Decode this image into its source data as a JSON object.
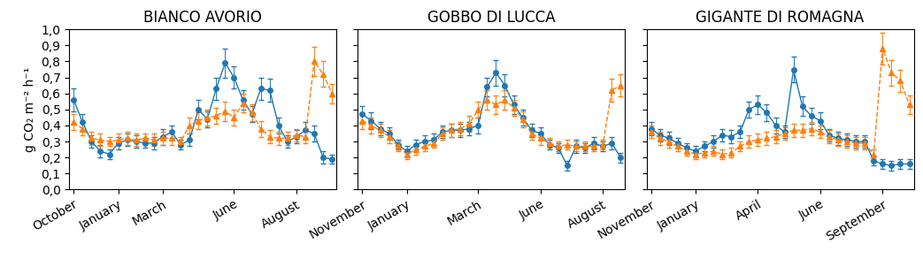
{
  "chart_data": [
    {
      "type": "line",
      "title": "BIANCO AVORIO",
      "ylabel": "g CO₂ m⁻² h⁻¹",
      "x": [
        0,
        1,
        2,
        3,
        4,
        5,
        6,
        7,
        8,
        9,
        10,
        11,
        12,
        13,
        14,
        15,
        16,
        17,
        18,
        19,
        20,
        21,
        22,
        23,
        24,
        25,
        26,
        27,
        28,
        29
      ],
      "series": [
        {
          "values": [
            0.56,
            0.42,
            0.3,
            0.24,
            0.22,
            0.29,
            0.31,
            0.3,
            0.29,
            0.29,
            0.33,
            0.36,
            0.28,
            0.31,
            0.5,
            0.44,
            0.63,
            0.79,
            0.7,
            0.56,
            0.47,
            0.63,
            0.62,
            0.4,
            0.3,
            0.33,
            0.37,
            0.35,
            0.2,
            0.19
          ],
          "errors": [
            0.07,
            0.05,
            0.04,
            0.04,
            0.03,
            0.04,
            0.04,
            0.04,
            0.03,
            0.04,
            0.05,
            0.04,
            0.03,
            0.04,
            0.06,
            0.05,
            0.07,
            0.09,
            0.07,
            0.06,
            0.05,
            0.07,
            0.07,
            0.05,
            0.04,
            0.04,
            0.05,
            0.05,
            0.04,
            0.03
          ],
          "marker": "circle",
          "line_style": "solid"
        },
        {
          "values": [
            0.42,
            0.38,
            0.32,
            0.31,
            0.3,
            0.31,
            0.32,
            0.31,
            0.32,
            0.31,
            0.32,
            0.32,
            0.3,
            0.4,
            0.43,
            0.45,
            0.46,
            0.49,
            0.45,
            0.54,
            0.48,
            0.38,
            0.33,
            0.32,
            0.32,
            0.34,
            0.33,
            0.8,
            0.72,
            0.6
          ],
          "errors": [
            0.05,
            0.04,
            0.04,
            0.04,
            0.03,
            0.04,
            0.04,
            0.04,
            0.03,
            0.04,
            0.04,
            0.04,
            0.03,
            0.05,
            0.05,
            0.05,
            0.05,
            0.06,
            0.05,
            0.06,
            0.05,
            0.05,
            0.04,
            0.04,
            0.04,
            0.04,
            0.04,
            0.09,
            0.08,
            0.06
          ],
          "marker": "triangle",
          "line_style": "dashed"
        }
      ],
      "xlim": [
        -0.5,
        29.5
      ],
      "xticks": [
        {
          "value": 0,
          "label": "October"
        },
        {
          "value": 5,
          "label": "January"
        },
        {
          "value": 10,
          "label": "March"
        },
        {
          "value": 18,
          "label": "June"
        },
        {
          "value": 25,
          "label": "August"
        }
      ],
      "ylim": [
        0.0,
        1.0
      ],
      "yticks": [
        {
          "value": 0.0,
          "label": "0,0"
        },
        {
          "value": 0.1,
          "label": "0,1"
        },
        {
          "value": 0.2,
          "label": "0,2"
        },
        {
          "value": 0.3,
          "label": "0,3"
        },
        {
          "value": 0.4,
          "label": "0,4"
        },
        {
          "value": 0.5,
          "label": "0,5"
        },
        {
          "value": 0.6,
          "label": "0,6"
        },
        {
          "value": 0.7,
          "label": "0,7"
        },
        {
          "value": 0.8,
          "label": "0,8"
        },
        {
          "value": 0.9,
          "label": "0,9"
        },
        {
          "value": 1.0,
          "label": "1,0"
        }
      ]
    },
    {
      "type": "line",
      "title": "GOBBO DI LUCCA",
      "x": [
        0,
        1,
        2,
        3,
        4,
        5,
        6,
        7,
        8,
        9,
        10,
        11,
        12,
        13,
        14,
        15,
        16,
        17,
        18,
        19,
        20,
        21,
        22,
        23,
        24,
        25,
        26,
        27,
        28,
        29
      ],
      "series": [
        {
          "values": [
            0.47,
            0.43,
            0.38,
            0.35,
            0.28,
            0.24,
            0.28,
            0.3,
            0.31,
            0.36,
            0.37,
            0.37,
            0.38,
            0.4,
            0.64,
            0.73,
            0.65,
            0.53,
            0.45,
            0.37,
            0.35,
            0.28,
            0.26,
            0.15,
            0.27,
            0.26,
            0.29,
            0.27,
            0.29,
            0.2
          ],
          "errors": [
            0.05,
            0.05,
            0.04,
            0.04,
            0.03,
            0.03,
            0.03,
            0.04,
            0.04,
            0.04,
            0.04,
            0.04,
            0.04,
            0.05,
            0.06,
            0.08,
            0.07,
            0.06,
            0.05,
            0.04,
            0.04,
            0.03,
            0.03,
            0.03,
            0.04,
            0.03,
            0.04,
            0.03,
            0.04,
            0.03
          ],
          "marker": "circle",
          "line_style": "solid"
        },
        {
          "values": [
            0.43,
            0.4,
            0.37,
            0.33,
            0.27,
            0.22,
            0.25,
            0.27,
            0.29,
            0.35,
            0.37,
            0.38,
            0.41,
            0.5,
            0.56,
            0.53,
            0.56,
            0.51,
            0.44,
            0.35,
            0.32,
            0.29,
            0.27,
            0.28,
            0.27,
            0.27,
            0.27,
            0.28,
            0.62,
            0.65
          ],
          "errors": [
            0.05,
            0.05,
            0.04,
            0.04,
            0.03,
            0.03,
            0.03,
            0.03,
            0.03,
            0.04,
            0.04,
            0.04,
            0.05,
            0.05,
            0.06,
            0.06,
            0.06,
            0.05,
            0.05,
            0.04,
            0.04,
            0.03,
            0.03,
            0.03,
            0.03,
            0.03,
            0.03,
            0.03,
            0.07,
            0.07
          ],
          "marker": "triangle",
          "line_style": "dashed"
        }
      ],
      "xlim": [
        -0.5,
        29.5
      ],
      "xticks": [
        {
          "value": 0,
          "label": "November"
        },
        {
          "value": 5,
          "label": "January"
        },
        {
          "value": 13,
          "label": "March"
        },
        {
          "value": 20,
          "label": "June"
        },
        {
          "value": 27,
          "label": "August"
        }
      ],
      "ylim": [
        0.0,
        1.0
      ],
      "yticks": [
        0.0,
        0.1,
        0.2,
        0.3,
        0.4,
        0.5,
        0.6,
        0.7,
        0.8,
        0.9,
        1.0
      ],
      "tick_labels": "x"
    },
    {
      "type": "line",
      "title": "GIGANTE DI ROMAGNA",
      "x": [
        0,
        1,
        2,
        3,
        4,
        5,
        6,
        7,
        8,
        9,
        10,
        11,
        12,
        13,
        14,
        15,
        16,
        17,
        18,
        19,
        20,
        21,
        22,
        23,
        24,
        25,
        26,
        27,
        28,
        29
      ],
      "series": [
        {
          "values": [
            0.38,
            0.34,
            0.32,
            0.29,
            0.26,
            0.24,
            0.27,
            0.3,
            0.34,
            0.33,
            0.36,
            0.5,
            0.53,
            0.48,
            0.4,
            0.36,
            0.75,
            0.52,
            0.46,
            0.43,
            0.34,
            0.32,
            0.31,
            0.3,
            0.3,
            0.18,
            0.16,
            0.15,
            0.16,
            0.16
          ],
          "errors": [
            0.04,
            0.04,
            0.04,
            0.03,
            0.03,
            0.03,
            0.03,
            0.04,
            0.04,
            0.04,
            0.04,
            0.05,
            0.06,
            0.05,
            0.05,
            0.04,
            0.08,
            0.06,
            0.05,
            0.05,
            0.04,
            0.04,
            0.04,
            0.04,
            0.04,
            0.03,
            0.03,
            0.03,
            0.03,
            0.03
          ],
          "marker": "circle",
          "line_style": "solid"
        },
        {
          "values": [
            0.36,
            0.32,
            0.3,
            0.27,
            0.24,
            0.22,
            0.23,
            0.24,
            0.22,
            0.23,
            0.27,
            0.3,
            0.31,
            0.32,
            0.33,
            0.35,
            0.37,
            0.37,
            0.38,
            0.36,
            0.33,
            0.31,
            0.3,
            0.29,
            0.29,
            0.22,
            0.88,
            0.73,
            0.68,
            0.53
          ],
          "errors": [
            0.04,
            0.04,
            0.04,
            0.03,
            0.03,
            0.03,
            0.03,
            0.03,
            0.03,
            0.03,
            0.03,
            0.04,
            0.04,
            0.04,
            0.04,
            0.04,
            0.04,
            0.04,
            0.04,
            0.04,
            0.04,
            0.04,
            0.04,
            0.04,
            0.04,
            0.03,
            0.1,
            0.08,
            0.07,
            0.06
          ],
          "marker": "triangle",
          "line_style": "dashed"
        }
      ],
      "xlim": [
        -0.5,
        29.5
      ],
      "xticks": [
        {
          "value": 0,
          "label": "November"
        },
        {
          "value": 5,
          "label": "January"
        },
        {
          "value": 12,
          "label": "April"
        },
        {
          "value": 19,
          "label": "June"
        },
        {
          "value": 26,
          "label": "September"
        }
      ],
      "ylim": [
        0.0,
        1.0
      ],
      "yticks": [
        0.0,
        0.1,
        0.2,
        0.3,
        0.4,
        0.5,
        0.6,
        0.7,
        0.8,
        0.9,
        1.0
      ],
      "tick_labels": "x"
    }
  ]
}
